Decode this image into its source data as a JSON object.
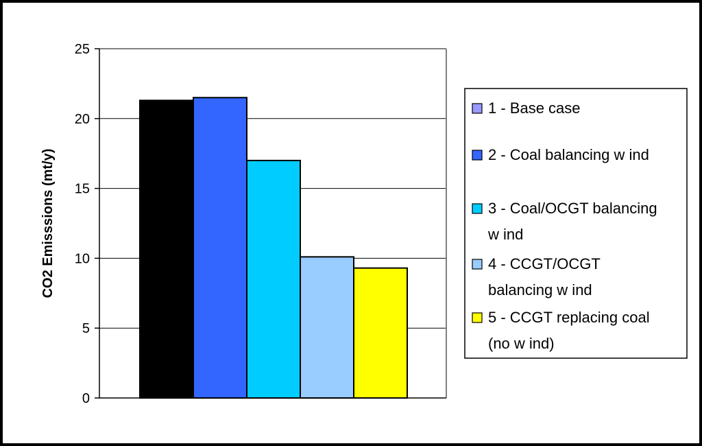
{
  "chart_data": {
    "type": "bar",
    "title": "",
    "xlabel": "",
    "ylabel": "CO2 Emisssions (mt/y)",
    "ylim": [
      0,
      25
    ],
    "yticks": [
      0,
      5,
      10,
      15,
      20,
      25
    ],
    "grid": true,
    "legend_position": "right",
    "categories": [
      ""
    ],
    "series": [
      {
        "name": "1 - Base case",
        "legend_lines": [
          "1 - Base case"
        ],
        "values": [
          21.3
        ],
        "color": "#000000",
        "legend_color": "#9999ff"
      },
      {
        "name": "2 - Coal balancing w ind",
        "legend_lines": [
          "2 - Coal balancing w ind"
        ],
        "values": [
          21.5
        ],
        "color": "#3366ff",
        "legend_color": "#3366ff"
      },
      {
        "name": "3 - Coal/OCGT balancing w ind",
        "legend_lines": [
          "3 - Coal/OCGT balancing",
          "w ind"
        ],
        "values": [
          17.0
        ],
        "color": "#00ccff",
        "legend_color": "#00ccff"
      },
      {
        "name": "4 - CCGT/OCGT balancing w ind",
        "legend_lines": [
          "4 - CCGT/OCGT",
          "balancing w ind"
        ],
        "values": [
          10.1
        ],
        "color": "#99ccff",
        "legend_color": "#99ccff"
      },
      {
        "name": "5 - CCGT replacing coal (no w ind)",
        "legend_lines": [
          "5 - CCGT replacing coal",
          "(no w ind)"
        ],
        "values": [
          9.3
        ],
        "color": "#ffff00",
        "legend_color": "#ffff00"
      }
    ]
  }
}
